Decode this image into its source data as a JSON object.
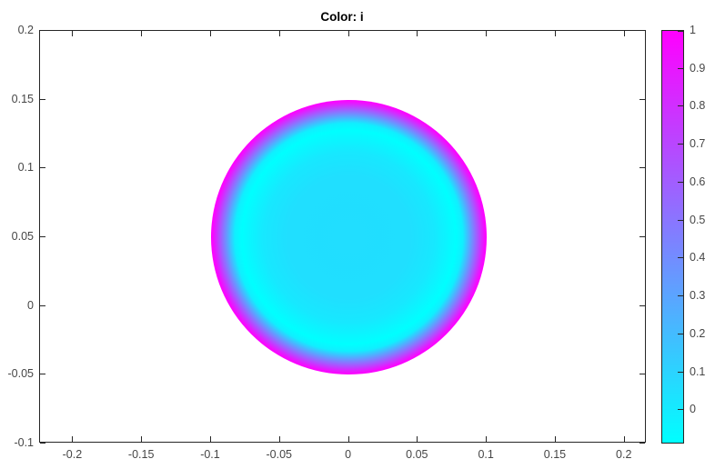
{
  "title": "Color: i",
  "figure": {
    "background": "#FFFFFF"
  },
  "axes": {
    "x_tick_labels": [
      "-0.2",
      "-0.15",
      "-0.1",
      "-0.05",
      "0",
      "0.05",
      "0.1",
      "0.15",
      "0.2"
    ],
    "y_tick_labels": [
      "0.2",
      "0.15",
      "0.1",
      "0.05",
      "0",
      "-0.05",
      "-0.1"
    ],
    "tick_direction": "in",
    "box": true,
    "grid": false
  },
  "colorbar": {
    "tick_labels": [
      "1",
      "0.9",
      "0.8",
      "0.7",
      "0.6",
      "0.5",
      "0.4",
      "0.3",
      "0.2",
      "0.1",
      "0"
    ],
    "position": "right",
    "color_low": "#00FFFF",
    "color_high": "#FF00FF",
    "colormap": "cool"
  },
  "chart_data": {
    "type": "heatmap",
    "title": "Color: i",
    "xlim": [
      -0.224,
      0.216
    ],
    "ylim": [
      -0.1,
      0.2
    ],
    "x_ticks": [
      -0.2,
      -0.15,
      -0.1,
      -0.05,
      0,
      0.05,
      0.1,
      0.15,
      0.2
    ],
    "y_ticks": [
      0.2,
      0.15,
      0.1,
      0.05,
      0,
      -0.05,
      -0.1
    ],
    "grid": false,
    "legend": false,
    "aspect": "equal",
    "colorbar_ticks": [
      1,
      0.9,
      0.8,
      0.7,
      0.6,
      0.5,
      0.4,
      0.3,
      0.2,
      0.1,
      0
    ],
    "geometry": {
      "shape": "circle",
      "center_x": 0,
      "center_y": 0.05,
      "radius": 0.1
    },
    "field": {
      "name": "i",
      "min": -0.09,
      "max": 1.0,
      "colormap": "cool",
      "description": "Scalar field on a circular domain: value about 0.05 over the interior (cyan), dipping to the minimum about -0.09 in a ring near r/R = 0.78 (pure cyan), then rising steeply to 1.0 at the boundary (magenta rim).",
      "radial_profile": {
        "r_over_R": [
          0,
          0.45,
          0.62,
          0.7,
          0.78,
          0.83,
          0.87,
          0.91,
          0.94,
          0.965,
          0.985,
          1.0
        ],
        "value": [
          0.05,
          0.045,
          0.01,
          -0.04,
          -0.09,
          -0.02,
          0.22,
          0.47,
          0.66,
          0.82,
          0.94,
          1.0
        ]
      }
    }
  }
}
